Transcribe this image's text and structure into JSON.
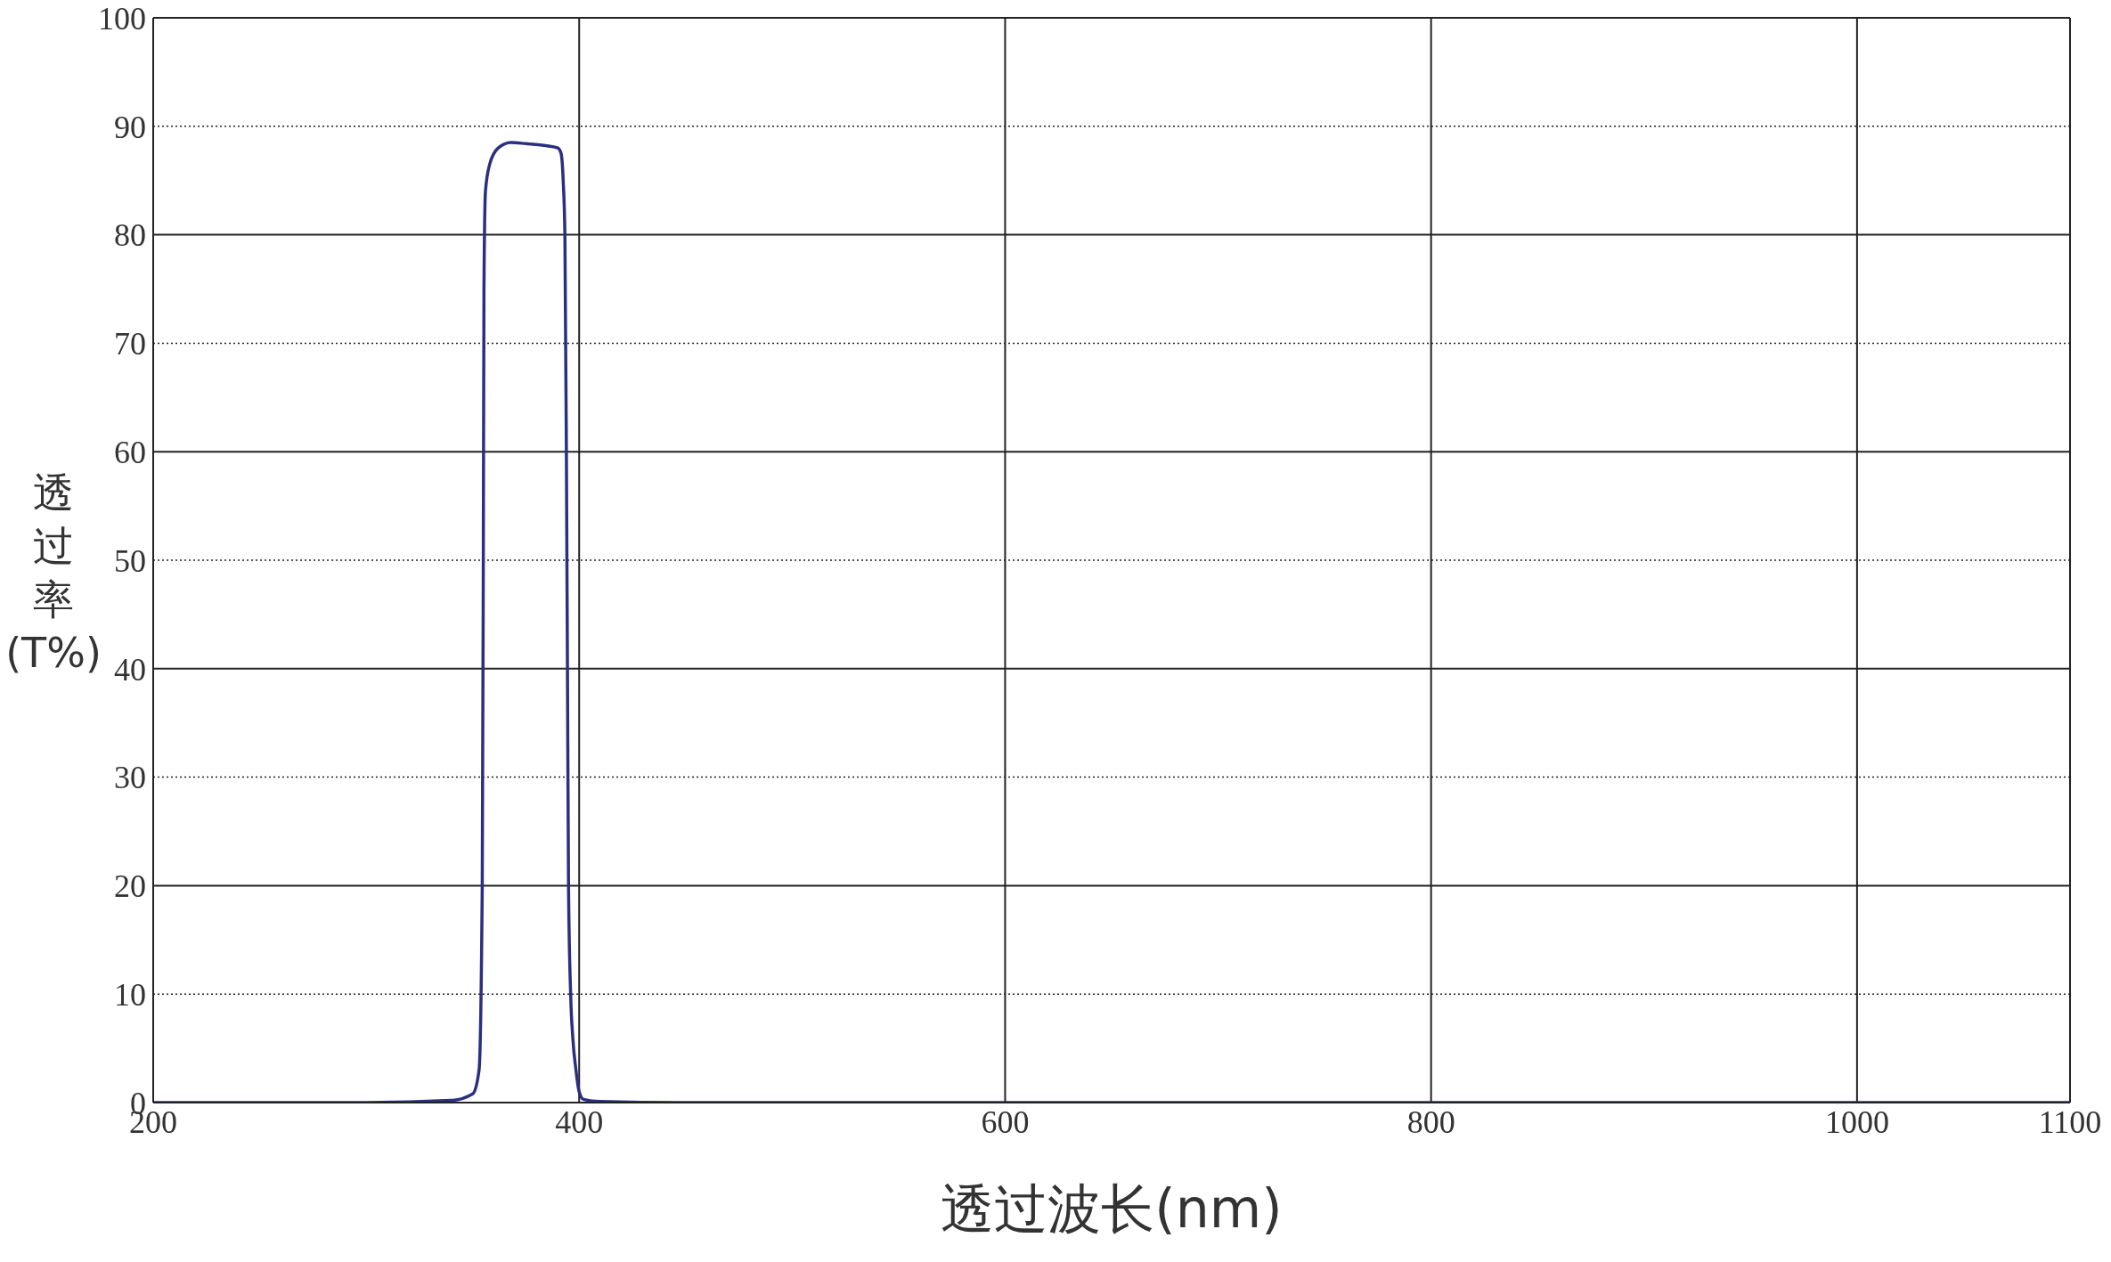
{
  "chart_data": {
    "type": "line",
    "xlabel": "透过波长(nm)",
    "ylabel": "透过率(T%)",
    "x": [
      200,
      300,
      340,
      350,
      353,
      354.5,
      355,
      355.3,
      356,
      358,
      362,
      368,
      375,
      385,
      390,
      391.5,
      392.5,
      393.3,
      394,
      394.5,
      395,
      396,
      397,
      398.5,
      400,
      402,
      410,
      450,
      1100
    ],
    "series": [
      {
        "color": "#2b2f80",
        "values": [
          0,
          0,
          0.2,
          0.8,
          3,
          20,
          50,
          75,
          84,
          86.5,
          88,
          88.5,
          88.4,
          88.2,
          88,
          87.5,
          85,
          80,
          60,
          40,
          20,
          10,
          6,
          3,
          1,
          0.3,
          0.1,
          0,
          0
        ]
      }
    ],
    "xlim": [
      200,
      1100
    ],
    "xticks": [
      200,
      400,
      600,
      800,
      1000,
      1100
    ],
    "ylim": [
      0,
      100
    ],
    "yticks": [
      0,
      10,
      20,
      30,
      40,
      50,
      60,
      70,
      80,
      90,
      100
    ],
    "grid": true,
    "marker": "none",
    "line_style": "solid"
  }
}
